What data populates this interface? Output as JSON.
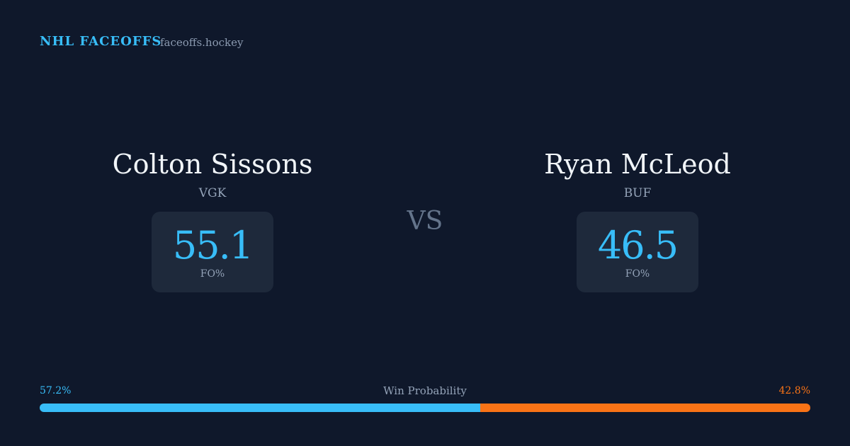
{
  "header": {
    "title": "NHL FACEOFFS",
    "site": "faceoffs.hockey"
  },
  "players": [
    {
      "name": "Colton Sissons",
      "team": "VGK",
      "fo_pct": 55.1,
      "fo_label": "FO%"
    },
    {
      "name": "Ryan McLeod",
      "team": "BUF",
      "fo_pct": 46.5,
      "fo_label": "FO%"
    }
  ],
  "vs": "VS",
  "win_probability": {
    "label": "Win Probability",
    "values": [
      57.2,
      42.8
    ],
    "value_labels": [
      "57.2%",
      "42.8%"
    ],
    "colors": [
      "#38bdf8",
      "#f97316"
    ]
  }
}
